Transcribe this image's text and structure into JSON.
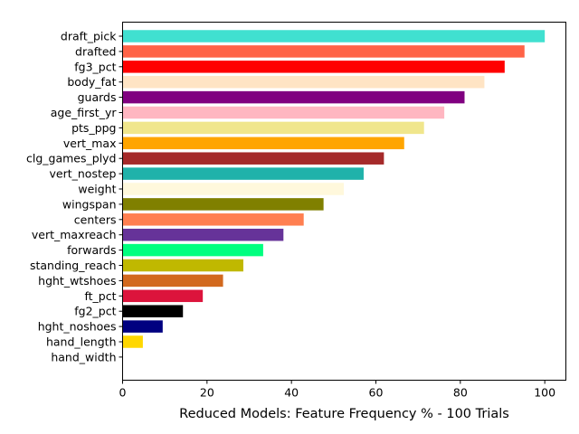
{
  "chart_data": {
    "type": "bar",
    "orientation": "horizontal",
    "title": "",
    "xlabel": "Reduced Models: Feature Frequency % - 100 Trials",
    "ylabel": "",
    "xlim": [
      0,
      105
    ],
    "xticks": [
      0,
      20,
      40,
      60,
      80,
      100
    ],
    "grid": false,
    "legend": "none",
    "categories": [
      "draft_pick",
      "drafted",
      "fg3_pct",
      "body_fat",
      "guards",
      "age_first_yr",
      "pts_ppg",
      "vert_max",
      "clg_games_plyd",
      "vert_nostep",
      "weight",
      "wingspan",
      "centers",
      "vert_maxreach",
      "forwards",
      "standing_reach",
      "hght_wtshoes",
      "ft_pct",
      "fg2_pct",
      "hght_noshoes",
      "hand_length",
      "hand_width"
    ],
    "values": [
      100,
      95.2,
      90.5,
      85.7,
      81.0,
      76.2,
      71.4,
      66.7,
      61.9,
      57.1,
      52.4,
      47.6,
      42.9,
      38.1,
      33.3,
      28.6,
      23.8,
      19.0,
      14.3,
      9.5,
      4.8,
      0
    ],
    "colors": [
      "#40e0d0",
      "#ff6347",
      "#ff0000",
      "#ffe4c4",
      "#800080",
      "#ffb6c1",
      "#f0e68c",
      "#ffa500",
      "#a52a2a",
      "#20b2aa",
      "#fff8dc",
      "#808000",
      "#ff7f50",
      "#663399",
      "#00ff7f",
      "#c0b800",
      "#d2691e",
      "#dc143c",
      "#000000",
      "#000080",
      "#ffd700",
      "#f0f0f0"
    ]
  }
}
